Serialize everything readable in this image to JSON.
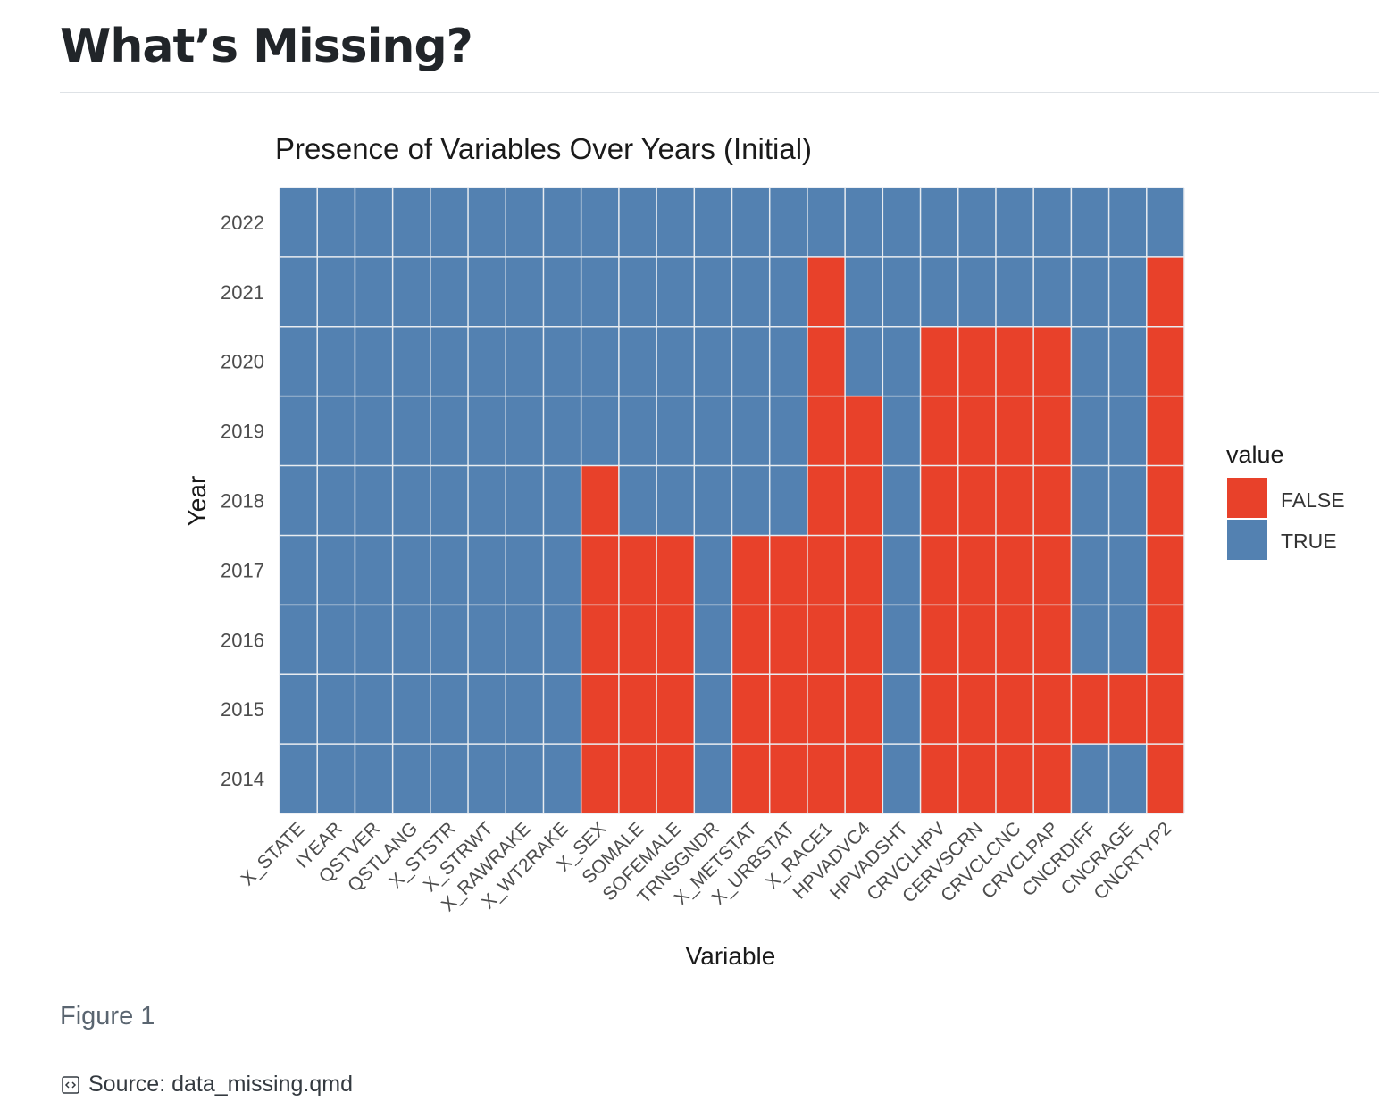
{
  "page": {
    "title": "What’s Missing?",
    "figure_caption": "Figure 1",
    "source_label": "Source: data_missing.qmd",
    "source_icon": "code-file-icon"
  },
  "colors": {
    "false": "#e8412a",
    "true": "#5381b1",
    "grid": "#e8ecf0"
  },
  "chart_data": {
    "type": "heatmap",
    "title": "Presence of Variables Over Years (Initial)",
    "xlabel": "Variable",
    "ylabel": "Year",
    "legend": {
      "title": "value",
      "placement": "right",
      "entries": [
        {
          "label": "FALSE",
          "color": "#e8412a"
        },
        {
          "label": "TRUE",
          "color": "#5381b1"
        }
      ]
    },
    "x": [
      "X_STATE",
      "IYEAR",
      "QSTVER",
      "QSTLANG",
      "X_STSTR",
      "X_STRWT",
      "X_RAWRAKE",
      "X_WT2RAKE",
      "X_SEX",
      "SOMALE",
      "SOFEMALE",
      "TRNSGNDR",
      "X_METSTAT",
      "X_URBSTAT",
      "X_RACE1",
      "HPVADVC4",
      "HPVADSHT",
      "CRVCLHPV",
      "CERVSCRN",
      "CRVCLCNC",
      "CRVCLPAP",
      "CNCRDIFF",
      "CNCRAGE",
      "CNCRTYP2"
    ],
    "y": [
      "2014",
      "2015",
      "2016",
      "2017",
      "2018",
      "2019",
      "2020",
      "2021",
      "2022"
    ],
    "present_years": {
      "X_STATE": [
        "2014",
        "2015",
        "2016",
        "2017",
        "2018",
        "2019",
        "2020",
        "2021",
        "2022"
      ],
      "IYEAR": [
        "2014",
        "2015",
        "2016",
        "2017",
        "2018",
        "2019",
        "2020",
        "2021",
        "2022"
      ],
      "QSTVER": [
        "2014",
        "2015",
        "2016",
        "2017",
        "2018",
        "2019",
        "2020",
        "2021",
        "2022"
      ],
      "QSTLANG": [
        "2014",
        "2015",
        "2016",
        "2017",
        "2018",
        "2019",
        "2020",
        "2021",
        "2022"
      ],
      "X_STSTR": [
        "2014",
        "2015",
        "2016",
        "2017",
        "2018",
        "2019",
        "2020",
        "2021",
        "2022"
      ],
      "X_STRWT": [
        "2014",
        "2015",
        "2016",
        "2017",
        "2018",
        "2019",
        "2020",
        "2021",
        "2022"
      ],
      "X_RAWRAKE": [
        "2014",
        "2015",
        "2016",
        "2017",
        "2018",
        "2019",
        "2020",
        "2021",
        "2022"
      ],
      "X_WT2RAKE": [
        "2014",
        "2015",
        "2016",
        "2017",
        "2018",
        "2019",
        "2020",
        "2021",
        "2022"
      ],
      "X_SEX": [
        "2019",
        "2020",
        "2021",
        "2022"
      ],
      "SOMALE": [
        "2018",
        "2019",
        "2020",
        "2021",
        "2022"
      ],
      "SOFEMALE": [
        "2018",
        "2019",
        "2020",
        "2021",
        "2022"
      ],
      "TRNSGNDR": [
        "2014",
        "2015",
        "2016",
        "2017",
        "2018",
        "2019",
        "2020",
        "2021",
        "2022"
      ],
      "X_METSTAT": [
        "2018",
        "2019",
        "2020",
        "2021",
        "2022"
      ],
      "X_URBSTAT": [
        "2018",
        "2019",
        "2020",
        "2021",
        "2022"
      ],
      "X_RACE1": [
        "2022"
      ],
      "HPVADVC4": [
        "2020",
        "2021",
        "2022"
      ],
      "HPVADSHT": [
        "2014",
        "2015",
        "2016",
        "2017",
        "2018",
        "2019",
        "2020",
        "2021",
        "2022"
      ],
      "CRVCLHPV": [
        "2021",
        "2022"
      ],
      "CERVSCRN": [
        "2021",
        "2022"
      ],
      "CRVCLCNC": [
        "2021",
        "2022"
      ],
      "CRVCLPAP": [
        "2021",
        "2022"
      ],
      "CNCRDIFF": [
        "2014",
        "2016",
        "2017",
        "2018",
        "2019",
        "2020",
        "2021",
        "2022"
      ],
      "CNCRAGE": [
        "2014",
        "2016",
        "2017",
        "2018",
        "2019",
        "2020",
        "2021",
        "2022"
      ],
      "CNCRTYP2": [
        "2022"
      ]
    }
  }
}
